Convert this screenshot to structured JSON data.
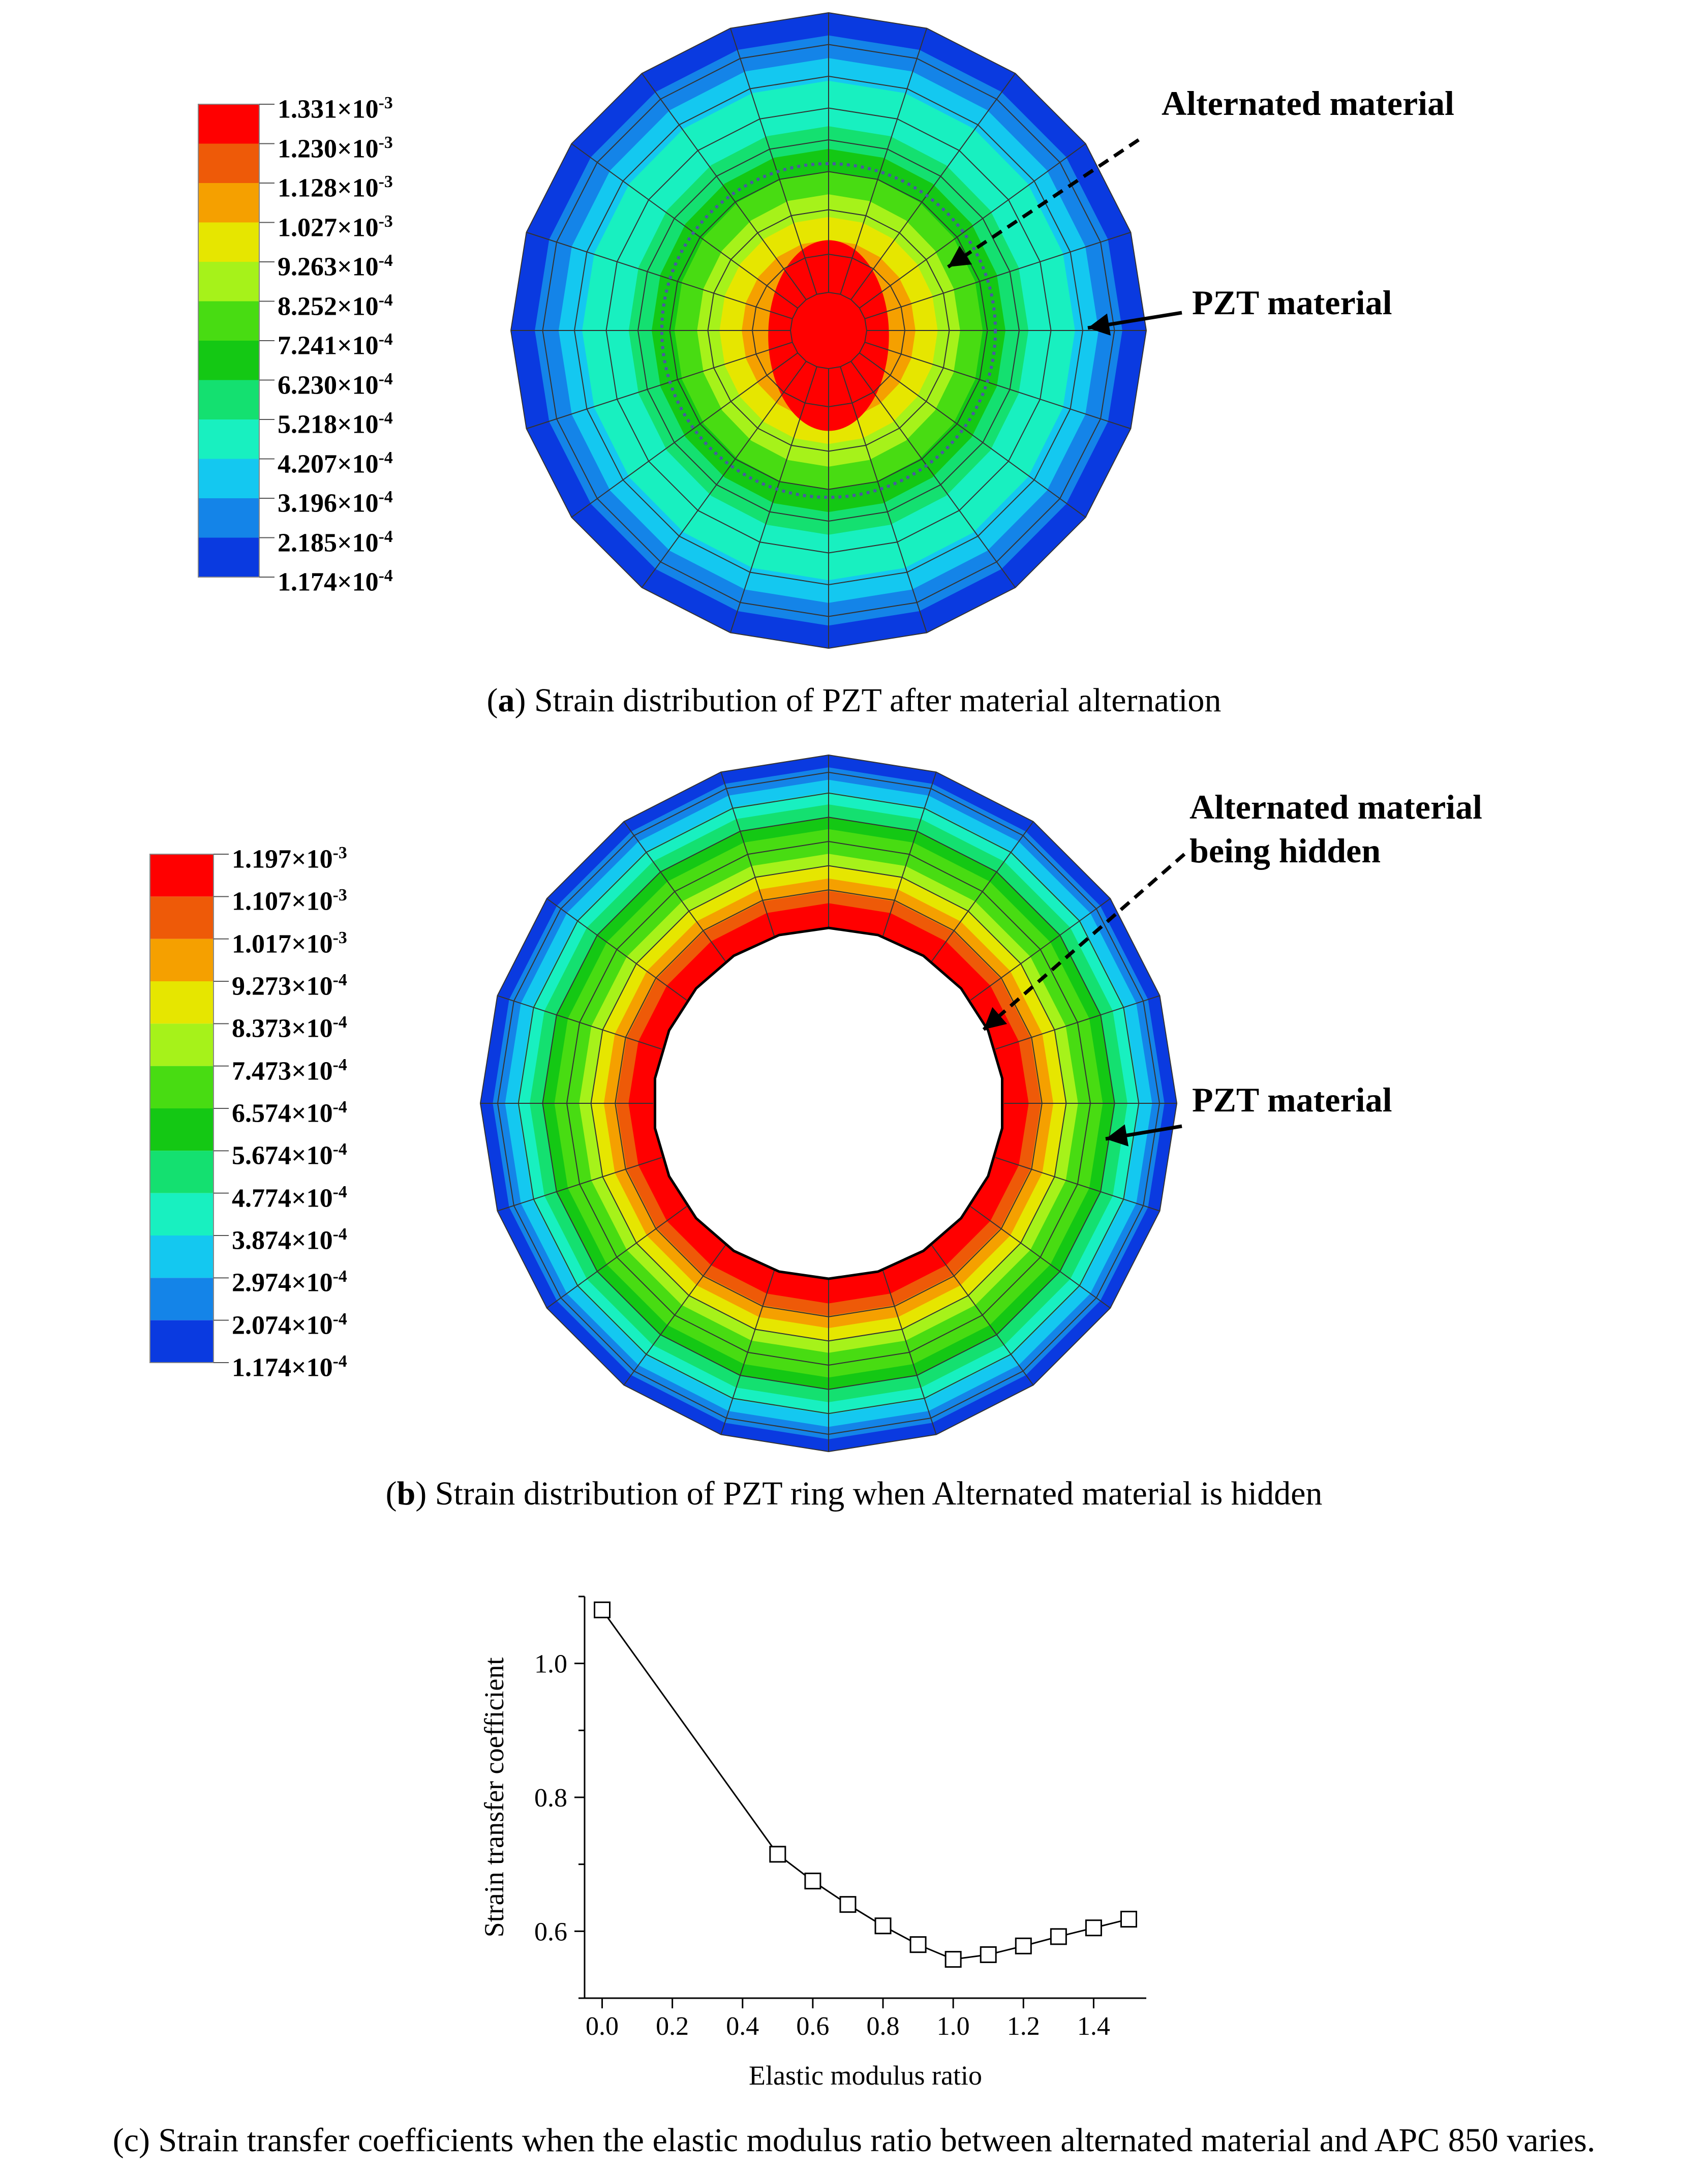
{
  "panel_a": {
    "legend": {
      "entries": [
        {
          "mantissa": "1.331",
          "exp": "-3"
        },
        {
          "mantissa": "1.230",
          "exp": "-3"
        },
        {
          "mantissa": "1.128",
          "exp": "-3"
        },
        {
          "mantissa": "1.027",
          "exp": "-3"
        },
        {
          "mantissa": "9.263",
          "exp": "-4"
        },
        {
          "mantissa": "8.252",
          "exp": "-4"
        },
        {
          "mantissa": "7.241",
          "exp": "-4"
        },
        {
          "mantissa": "6.230",
          "exp": "-4"
        },
        {
          "mantissa": "5.218",
          "exp": "-4"
        },
        {
          "mantissa": "4.207",
          "exp": "-4"
        },
        {
          "mantissa": "3.196",
          "exp": "-4"
        },
        {
          "mantissa": "2.185",
          "exp": "-4"
        },
        {
          "mantissa": "1.174",
          "exp": "-4"
        }
      ],
      "colors": [
        "#ff0000",
        "#ee5a08",
        "#f5a000",
        "#e6e600",
        "#a6f21a",
        "#48dc12",
        "#14c814",
        "#14e070",
        "#18f0c0",
        "#14c8f0",
        "#1484e8",
        "#0a3ae0"
      ],
      "times_symbol": "×10"
    },
    "annotation_alternated": "Alternated material",
    "annotation_pzt": "PZT material",
    "caption_letter": "a",
    "caption_text": " Strain distribution of PZT after material alternation"
  },
  "panel_b": {
    "legend": {
      "entries": [
        {
          "mantissa": "1.197",
          "exp": "-3"
        },
        {
          "mantissa": "1.107",
          "exp": "-3"
        },
        {
          "mantissa": "1.017",
          "exp": "-3"
        },
        {
          "mantissa": "9.273",
          "exp": "-4"
        },
        {
          "mantissa": "8.373",
          "exp": "-4"
        },
        {
          "mantissa": "7.473",
          "exp": "-4"
        },
        {
          "mantissa": "6.574",
          "exp": "-4"
        },
        {
          "mantissa": "5.674",
          "exp": "-4"
        },
        {
          "mantissa": "4.774",
          "exp": "-4"
        },
        {
          "mantissa": "3.874",
          "exp": "-4"
        },
        {
          "mantissa": "2.974",
          "exp": "-4"
        },
        {
          "mantissa": "2.074",
          "exp": "-4"
        },
        {
          "mantissa": "1.174",
          "exp": "-4"
        }
      ],
      "colors": [
        "#ff0000",
        "#ee5a08",
        "#f5a000",
        "#e6e600",
        "#a6f21a",
        "#48dc12",
        "#14c814",
        "#14e070",
        "#18f0c0",
        "#14c8f0",
        "#1484e8",
        "#0a3ae0"
      ],
      "times_symbol": "×10"
    },
    "annotation_hidden_line1": "Alternated material",
    "annotation_hidden_line2": "being hidden",
    "annotation_pzt": "PZT material",
    "caption_letter": "b",
    "caption_text": " Strain distribution of PZT ring when Alternated material is hidden"
  },
  "panel_c": {
    "caption_letter": "(c)",
    "caption_text": " Strain transfer coefficients when the elastic modulus ratio between alternated material and APC 850 varies."
  },
  "chart_data": {
    "type": "line",
    "title": "",
    "xlabel": "Elastic modulus ratio",
    "ylabel": "Strain transfer coefficient",
    "x": [
      0.0,
      0.5,
      0.6,
      0.7,
      0.8,
      0.9,
      1.0,
      1.1,
      1.2,
      1.3,
      1.4,
      1.5
    ],
    "y": [
      1.08,
      0.715,
      0.675,
      0.64,
      0.608,
      0.58,
      0.558,
      0.565,
      0.578,
      0.592,
      0.605,
      0.618
    ],
    "xlim": [
      -0.05,
      1.55
    ],
    "ylim": [
      0.5,
      1.1
    ],
    "xticks": [
      "0.0",
      "0.2",
      "0.4",
      "0.6",
      "0.8",
      "1.0",
      "1.2",
      "1.4"
    ],
    "yticks": [
      "0.6",
      "0.8",
      "1.0"
    ],
    "marker": "open-square",
    "grid": false
  }
}
